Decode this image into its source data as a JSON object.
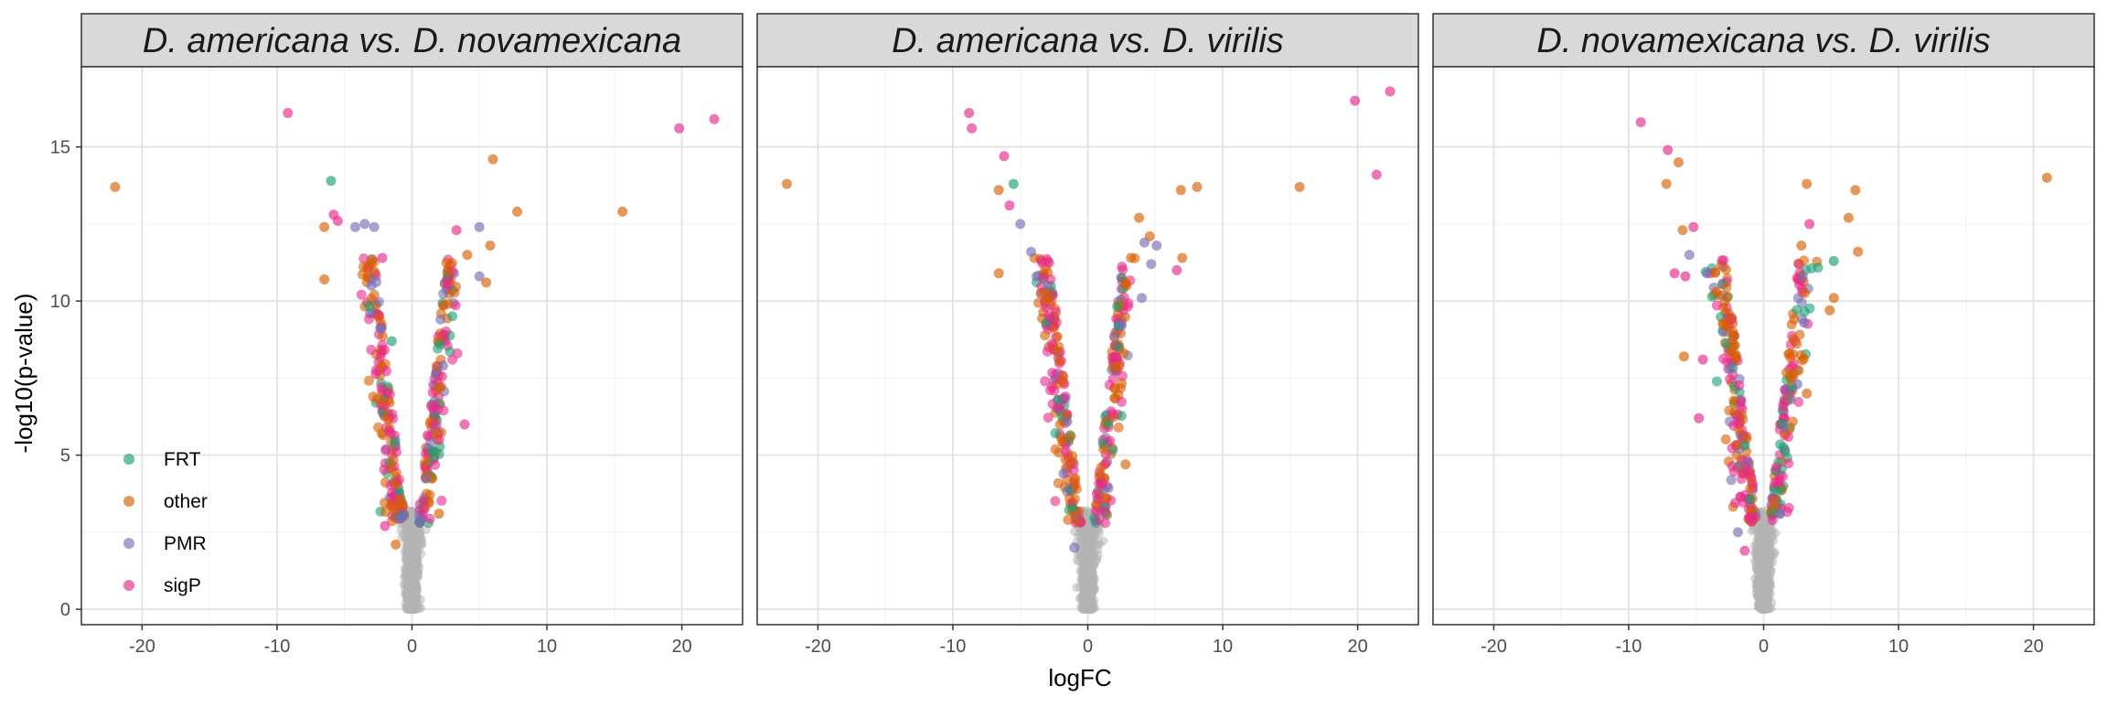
{
  "chart_data": {
    "type": "scatter",
    "xlabel": "logFC",
    "ylabel": "-log10(p-value)",
    "xlim": [
      -24.5,
      24.5
    ],
    "ylim": [
      -0.5,
      17.6
    ],
    "x_ticks": [
      -20,
      -10,
      0,
      10,
      20
    ],
    "y_ticks": [
      0,
      5,
      10,
      15
    ],
    "grid": true,
    "legend_position": "bottom-left",
    "legend": [
      {
        "label": "FRT",
        "color": "#1b9e77"
      },
      {
        "label": "other",
        "color": "#d95f02"
      },
      {
        "label": "PMR",
        "color": "#7570b3"
      },
      {
        "label": "sigP",
        "color": "#e7298a"
      }
    ],
    "background_color": "#b3b3b3",
    "panels": [
      {
        "title": "D. americana vs. D. novamexicana",
        "seed": 11,
        "highlighted": [
          {
            "x": -22,
            "y": 13.7,
            "group": "other"
          },
          {
            "x": -9.2,
            "y": 16.1,
            "group": "sigP"
          },
          {
            "x": -6,
            "y": 13.9,
            "group": "FRT"
          },
          {
            "x": -5.8,
            "y": 12.8,
            "group": "sigP"
          },
          {
            "x": -5.5,
            "y": 12.6,
            "group": "sigP"
          },
          {
            "x": -6.5,
            "y": 12.4,
            "group": "other"
          },
          {
            "x": -4.2,
            "y": 12.4,
            "group": "PMR"
          },
          {
            "x": -3.5,
            "y": 12.5,
            "group": "PMR"
          },
          {
            "x": -2.8,
            "y": 12.4,
            "group": "PMR"
          },
          {
            "x": -2.2,
            "y": 11.4,
            "group": "sigP"
          },
          {
            "x": -6.5,
            "y": 10.7,
            "group": "other"
          },
          {
            "x": -3,
            "y": 10.5,
            "group": "PMR"
          },
          {
            "x": 6,
            "y": 14.6,
            "group": "other"
          },
          {
            "x": 7.8,
            "y": 12.9,
            "group": "other"
          },
          {
            "x": 15.6,
            "y": 12.9,
            "group": "other"
          },
          {
            "x": 19.8,
            "y": 15.6,
            "group": "sigP"
          },
          {
            "x": 22.4,
            "y": 15.9,
            "group": "sigP"
          },
          {
            "x": 5,
            "y": 12.4,
            "group": "PMR"
          },
          {
            "x": 5.8,
            "y": 11.8,
            "group": "other"
          },
          {
            "x": 3.3,
            "y": 12.3,
            "group": "sigP"
          },
          {
            "x": 4.1,
            "y": 11.5,
            "group": "other"
          },
          {
            "x": 5,
            "y": 10.8,
            "group": "PMR"
          },
          {
            "x": 5.5,
            "y": 10.6,
            "group": "other"
          },
          {
            "x": 3.9,
            "y": 6,
            "group": "sigP"
          },
          {
            "x": -1.5,
            "y": 8.7,
            "group": "FRT"
          },
          {
            "x": 2.3,
            "y": 7.9,
            "group": "PMR"
          },
          {
            "x": -2,
            "y": 2.7,
            "group": "sigP"
          },
          {
            "x": -1.2,
            "y": 2.1,
            "group": "other"
          },
          {
            "x": 2,
            "y": 3.1,
            "group": "other"
          }
        ]
      },
      {
        "title": "D. americana vs. D. virilis",
        "seed": 23,
        "highlighted": [
          {
            "x": -22.3,
            "y": 13.8,
            "group": "other"
          },
          {
            "x": -8.8,
            "y": 16.1,
            "group": "sigP"
          },
          {
            "x": -8.6,
            "y": 15.6,
            "group": "sigP"
          },
          {
            "x": -6.2,
            "y": 14.7,
            "group": "sigP"
          },
          {
            "x": -5.5,
            "y": 13.8,
            "group": "FRT"
          },
          {
            "x": -6.6,
            "y": 13.6,
            "group": "other"
          },
          {
            "x": -5.8,
            "y": 13.1,
            "group": "sigP"
          },
          {
            "x": -5,
            "y": 12.5,
            "group": "PMR"
          },
          {
            "x": -4.2,
            "y": 11.6,
            "group": "PMR"
          },
          {
            "x": -6.6,
            "y": 10.9,
            "group": "other"
          },
          {
            "x": 19.8,
            "y": 16.5,
            "group": "sigP"
          },
          {
            "x": 22.4,
            "y": 16.8,
            "group": "sigP"
          },
          {
            "x": 21.4,
            "y": 14.1,
            "group": "sigP"
          },
          {
            "x": 15.7,
            "y": 13.7,
            "group": "other"
          },
          {
            "x": 8.1,
            "y": 13.7,
            "group": "other"
          },
          {
            "x": 6.9,
            "y": 13.6,
            "group": "other"
          },
          {
            "x": 3.8,
            "y": 12.7,
            "group": "other"
          },
          {
            "x": 4.6,
            "y": 12.1,
            "group": "other"
          },
          {
            "x": 4.2,
            "y": 11.9,
            "group": "PMR"
          },
          {
            "x": 5.1,
            "y": 11.8,
            "group": "PMR"
          },
          {
            "x": 7,
            "y": 11.4,
            "group": "other"
          },
          {
            "x": 4.7,
            "y": 11.2,
            "group": "PMR"
          },
          {
            "x": 6.6,
            "y": 11,
            "group": "sigP"
          },
          {
            "x": 3.2,
            "y": 11.4,
            "group": "other"
          },
          {
            "x": 4,
            "y": 10.1,
            "group": "PMR"
          },
          {
            "x": 2.5,
            "y": 9.2,
            "group": "PMR"
          },
          {
            "x": -2.2,
            "y": 6.8,
            "group": "FRT"
          },
          {
            "x": -1.8,
            "y": 4.4,
            "group": "PMR"
          },
          {
            "x": -1,
            "y": 2,
            "group": "PMR"
          },
          {
            "x": 2.8,
            "y": 4.7,
            "group": "other"
          },
          {
            "x": 1.4,
            "y": 3.6,
            "group": "other"
          }
        ]
      },
      {
        "title": "D. novamexicana vs. D. virilis",
        "seed": 37,
        "highlighted": [
          {
            "x": -9.1,
            "y": 15.8,
            "group": "sigP"
          },
          {
            "x": -7.1,
            "y": 14.9,
            "group": "sigP"
          },
          {
            "x": -6.3,
            "y": 14.5,
            "group": "other"
          },
          {
            "x": -7.2,
            "y": 13.8,
            "group": "other"
          },
          {
            "x": -5.2,
            "y": 12.4,
            "group": "sigP"
          },
          {
            "x": -6,
            "y": 12.3,
            "group": "other"
          },
          {
            "x": -5.5,
            "y": 11.5,
            "group": "PMR"
          },
          {
            "x": -6.6,
            "y": 10.9,
            "group": "sigP"
          },
          {
            "x": -5.8,
            "y": 10.8,
            "group": "sigP"
          },
          {
            "x": -4.2,
            "y": 10.9,
            "group": "PMR"
          },
          {
            "x": -3.5,
            "y": 10.3,
            "group": "other"
          },
          {
            "x": 21,
            "y": 14,
            "group": "other"
          },
          {
            "x": 3.2,
            "y": 13.8,
            "group": "other"
          },
          {
            "x": 6.8,
            "y": 13.6,
            "group": "other"
          },
          {
            "x": 6.3,
            "y": 12.7,
            "group": "other"
          },
          {
            "x": 3.4,
            "y": 12.5,
            "group": "sigP"
          },
          {
            "x": 2.8,
            "y": 11.8,
            "group": "other"
          },
          {
            "x": 7,
            "y": 11.6,
            "group": "other"
          },
          {
            "x": 5.2,
            "y": 11.3,
            "group": "FRT"
          },
          {
            "x": 2.9,
            "y": 10.8,
            "group": "PMR"
          },
          {
            "x": 5.2,
            "y": 10.1,
            "group": "other"
          },
          {
            "x": 4.9,
            "y": 9.7,
            "group": "other"
          },
          {
            "x": 3,
            "y": 9.3,
            "group": "PMR"
          },
          {
            "x": -5.9,
            "y": 8.2,
            "group": "other"
          },
          {
            "x": -4.5,
            "y": 8.1,
            "group": "sigP"
          },
          {
            "x": 2.5,
            "y": 7.3,
            "group": "PMR"
          },
          {
            "x": 3.2,
            "y": 7,
            "group": "other"
          },
          {
            "x": -4.8,
            "y": 6.2,
            "group": "sigP"
          },
          {
            "x": -1.9,
            "y": 2.5,
            "group": "PMR"
          },
          {
            "x": -1.4,
            "y": 1.9,
            "group": "sigP"
          },
          {
            "x": -1.5,
            "y": 4.4,
            "group": "sigP"
          }
        ]
      }
    ]
  }
}
